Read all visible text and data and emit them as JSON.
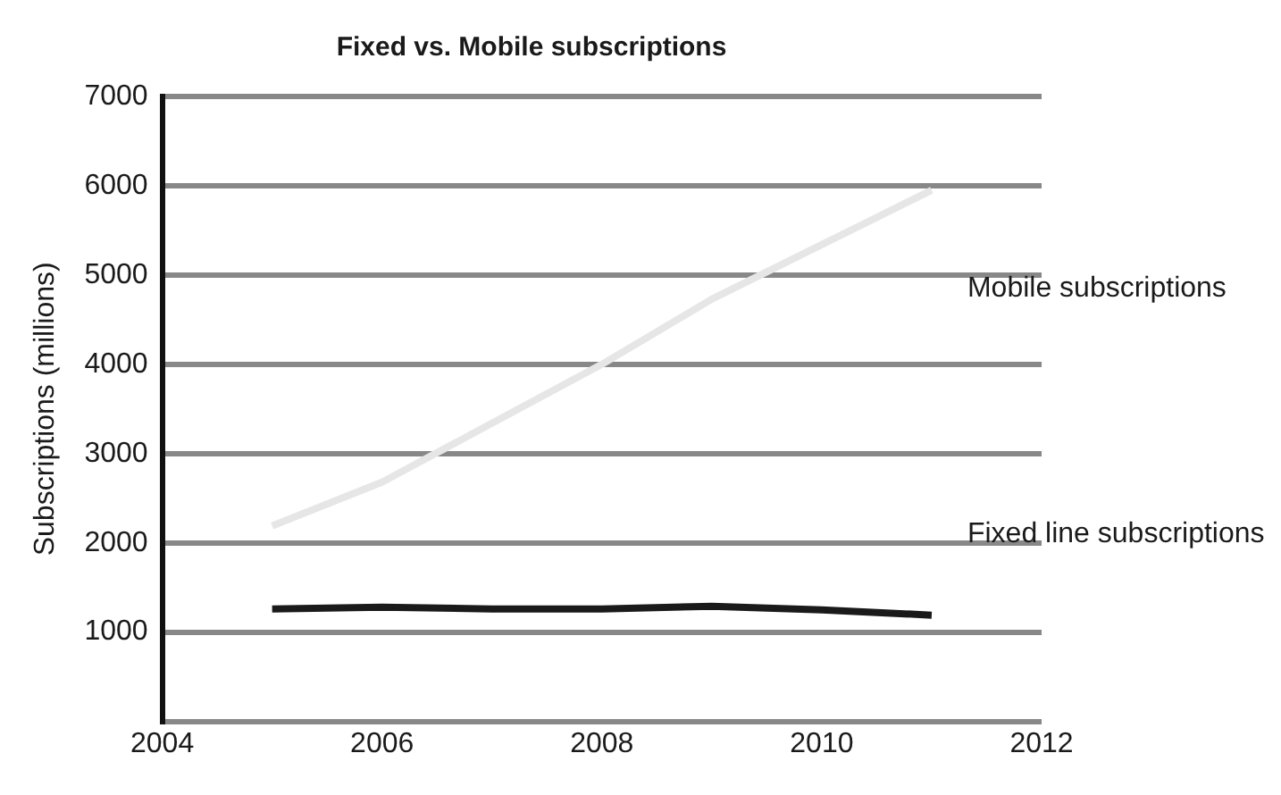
{
  "chart_data": {
    "type": "line",
    "title": "Fixed vs. Mobile subscriptions",
    "ylabel": "Subscriptions (millions)",
    "x": [
      2005,
      2006,
      2007,
      2008,
      2009,
      2010,
      2011
    ],
    "series": [
      {
        "name": "Mobile subscriptions",
        "color": "#e6e6e6",
        "values": [
          2190,
          2680,
          3340,
          4000,
          4730,
          5340,
          5950
        ]
      },
      {
        "name": "Fixed line subscriptions",
        "color": "#1a1a1a",
        "values": [
          1260,
          1280,
          1260,
          1260,
          1290,
          1250,
          1190
        ]
      }
    ],
    "xlim": [
      2004,
      2012
    ],
    "xticks": [
      2004,
      2006,
      2008,
      2010,
      2012
    ],
    "ylim": [
      0,
      7000
    ],
    "yticks": [
      {
        "value": 0,
        "label": null
      },
      1000,
      2000,
      3000,
      4000,
      5000,
      6000,
      7000
    ],
    "grid": "y",
    "legend": false,
    "marker": "none",
    "line_style": "solid"
  }
}
